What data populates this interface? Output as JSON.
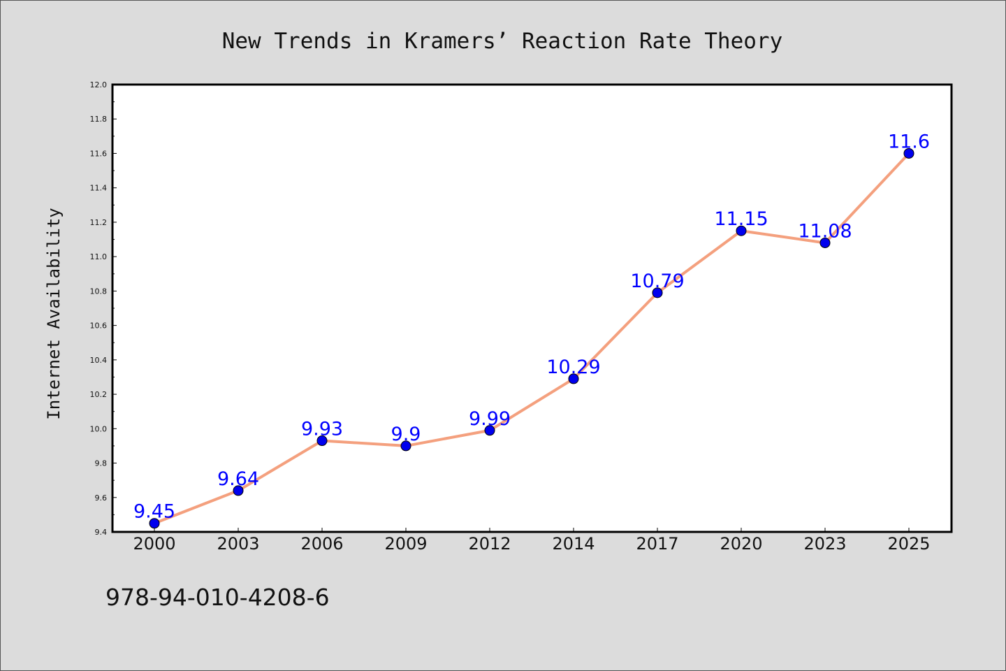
{
  "chart_data": {
    "type": "line",
    "title": "New Trends in Kramers’ Reaction Rate Theory",
    "xlabel": "",
    "ylabel": "Internet Availability",
    "categories": [
      "2000",
      "2003",
      "2006",
      "2009",
      "2012",
      "2014",
      "2017",
      "2020",
      "2023",
      "2025"
    ],
    "series": [
      {
        "values": [
          9.45,
          9.64,
          9.93,
          9.9,
          9.99,
          10.29,
          10.79,
          11.15,
          11.08,
          11.6
        ],
        "data_labels": [
          "9.45",
          "9.64",
          "9.93",
          "9.9",
          "9.99",
          "10.29",
          "10.79",
          "11.15",
          "11.08",
          "11.6"
        ],
        "line_color": "#f4a07e",
        "marker_color": "#0000ee"
      }
    ],
    "ylim": [
      9.4,
      12.0
    ],
    "yticks": [
      "9.4",
      "9.6",
      "9.8",
      "10.0",
      "10.2",
      "10.4",
      "10.6",
      "10.8",
      "11.0",
      "11.2",
      "11.4",
      "11.6",
      "11.8",
      "12.0"
    ],
    "grid": false,
    "legend": "none"
  },
  "annotation": "978-94-010-4208-6",
  "colors": {
    "background": "#dcdcdc",
    "plot_background": "#ffffff",
    "data_label": "#0000ff"
  }
}
